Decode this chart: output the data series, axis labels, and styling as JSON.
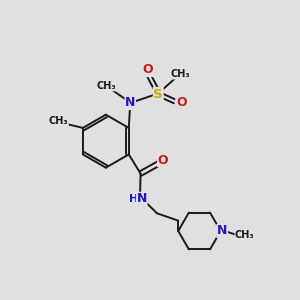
{
  "bg_color": "#e0e0e0",
  "bond_color": "#1a1a1a",
  "N_color": "#1a1acc",
  "O_color": "#cc1a1a",
  "S_color": "#ccaa00",
  "line_width": 1.4,
  "font_size": 8.5,
  "xlim": [
    0,
    10
  ],
  "ylim": [
    0,
    10
  ]
}
